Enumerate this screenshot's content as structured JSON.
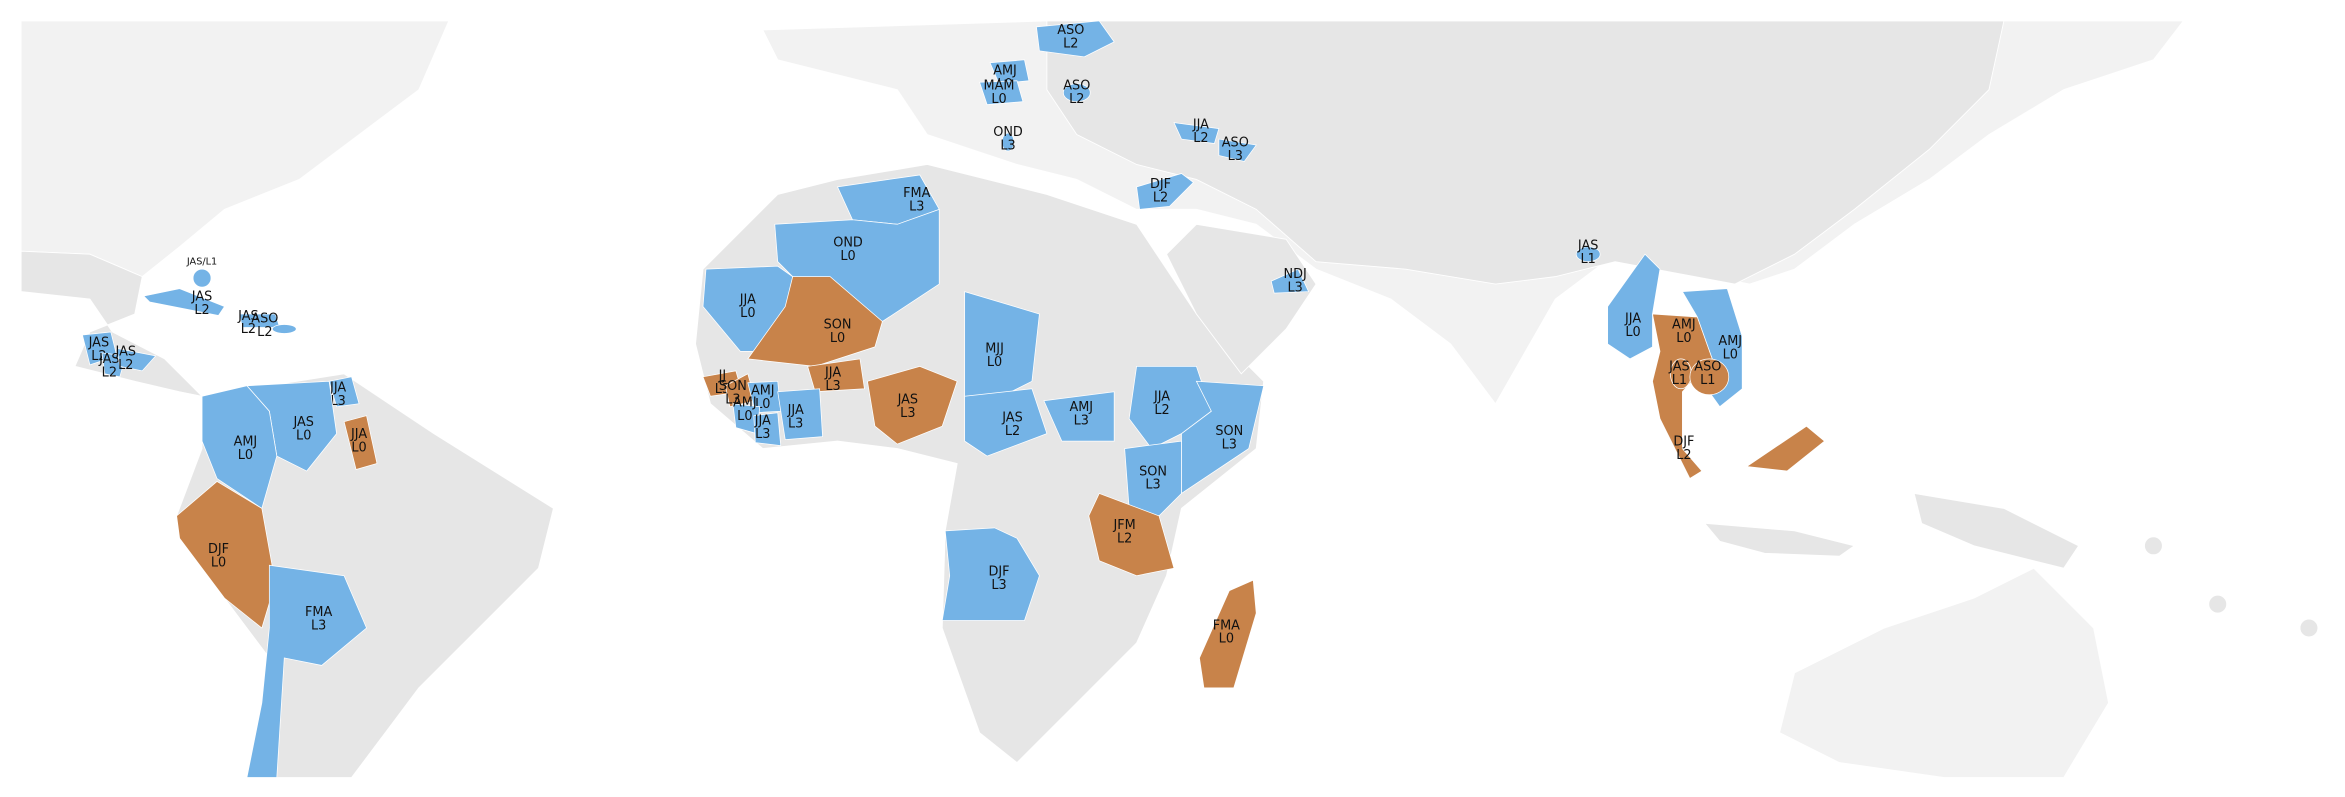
{
  "map": {
    "regions": [
      {
        "season": "ASO",
        "level": "L2",
        "color": "#74b3e6"
      },
      {
        "season": "AMJ",
        "level": "L0",
        "color": "#74b3e6"
      },
      {
        "season": "MAM",
        "level": "L0",
        "color": "#74b3e6"
      },
      {
        "season": "ASO",
        "level": "L2",
        "color": "#74b3e6"
      },
      {
        "season": "OND",
        "level": "L3",
        "color": "#74b3e6"
      },
      {
        "season": "JJA",
        "level": "L2",
        "color": "#74b3e6"
      },
      {
        "season": "ASO",
        "level": "L3",
        "color": "#74b3e6"
      },
      {
        "season": "DJF",
        "level": "L2",
        "color": "#74b3e6"
      },
      {
        "season": "FMA",
        "level": "L3",
        "color": "#74b3e6"
      },
      {
        "season": "OND",
        "level": "L0",
        "color": "#74b3e6"
      },
      {
        "season": "JAS",
        "level": "L1",
        "color": "#74b3e6"
      },
      {
        "season": "NDJ",
        "level": "L3",
        "color": "#74b3e6"
      },
      {
        "label": "JAS/L1",
        "color": "#74b3e6"
      },
      {
        "season": "JAS",
        "level": "L2",
        "color": "#74b3e6"
      },
      {
        "season": "JAS",
        "level": "L2",
        "color": "#74b3e6"
      },
      {
        "season": "ASO",
        "level": "L2",
        "color": "#74b3e6"
      },
      {
        "season": "JAS",
        "level": "L2",
        "color": "#74b3e6"
      },
      {
        "season": "JAS",
        "level": "L2",
        "color": "#74b3e6"
      },
      {
        "season": "JAS",
        "level": "L2",
        "color": "#74b3e6"
      },
      {
        "season": "JJA",
        "level": "L0",
        "color": "#74b3e6"
      },
      {
        "season": "SON",
        "level": "L0",
        "color": "#c8834a"
      },
      {
        "season": "JJA",
        "level": "L3",
        "color": "#c8834a"
      },
      {
        "season": "JJ",
        "level": "L3",
        "color": "#c8834a"
      },
      {
        "season": "SON",
        "level": "L3",
        "color": "#c8834a"
      },
      {
        "season": "AMJ",
        "level": "L0",
        "color": "#74b3e6"
      },
      {
        "season": "AMJ",
        "level": "L0",
        "color": "#74b3e6"
      },
      {
        "season": "JJA",
        "level": "L3",
        "color": "#74b3e6"
      },
      {
        "season": "JJA",
        "level": "L3",
        "color": "#74b3e6"
      },
      {
        "season": "JAS",
        "level": "L3",
        "color": "#c8834a"
      },
      {
        "season": "MJJ",
        "level": "L0",
        "color": "#74b3e6"
      },
      {
        "season": "JAS",
        "level": "L2",
        "color": "#74b3e6"
      },
      {
        "season": "AMJ",
        "level": "L3",
        "color": "#74b3e6"
      },
      {
        "season": "JJA",
        "level": "L2",
        "color": "#74b3e6"
      },
      {
        "season": "SON",
        "level": "L3",
        "color": "#74b3e6"
      },
      {
        "season": "SON",
        "level": "L3",
        "color": "#74b3e6"
      },
      {
        "season": "JFM",
        "level": "L2",
        "color": "#c8834a"
      },
      {
        "season": "DJF",
        "level": "L3",
        "color": "#74b3e6"
      },
      {
        "season": "FMA",
        "level": "L0",
        "color": "#c8834a"
      },
      {
        "season": "JJA",
        "level": "L0",
        "color": "#74b3e6"
      },
      {
        "season": "AMJ",
        "level": "L0",
        "color": "#c8834a"
      },
      {
        "season": "AMJ",
        "level": "L0",
        "color": "#74b3e6"
      },
      {
        "season": "JAS",
        "level": "L1",
        "color": "#c8834a"
      },
      {
        "season": "ASO",
        "level": "L1",
        "color": "#c8834a"
      },
      {
        "season": "DJF",
        "level": "L2",
        "color": "#c8834a"
      },
      {
        "season": "JJA",
        "level": "L3",
        "color": "#74b3e6"
      },
      {
        "season": "JAS",
        "level": "L0",
        "color": "#74b3e6"
      },
      {
        "season": "AMJ",
        "level": "L0",
        "color": "#74b3e6"
      },
      {
        "season": "JJA",
        "level": "L0",
        "color": "#c8834a"
      },
      {
        "season": "DJF",
        "level": "L0",
        "color": "#c8834a"
      },
      {
        "season": "FMA",
        "level": "L3",
        "color": "#74b3e6"
      }
    ]
  }
}
